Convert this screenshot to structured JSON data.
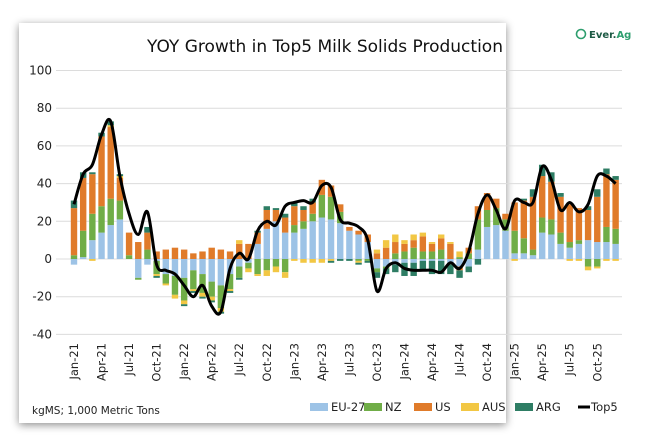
{
  "chart_data": {
    "type": "bar",
    "stacked": true,
    "title": "YOY Growth in Top5 Milk Solids Production",
    "brand": "Ever.Ag",
    "footnote": "kgMS; 1,000 Metric Tons",
    "xlabel": "",
    "ylabel": "",
    "ylim": [
      -40,
      100
    ],
    "yticks": [
      100,
      80,
      60,
      40,
      20,
      0,
      -20,
      -40
    ],
    "grid": true,
    "legend_position": "bottom-right",
    "colors": {
      "EU-27": "#9dc3e6",
      "NZ": "#70ad47",
      "US": "#e07b2a",
      "AUS": "#f2c744",
      "ARG": "#2e7d64",
      "Top5": "#000000"
    },
    "categories": [
      "Jan-21",
      "Feb-21",
      "Mar-21",
      "Apr-21",
      "May-21",
      "Jun-21",
      "Jul-21",
      "Aug-21",
      "Sep-21",
      "Oct-21",
      "Nov-21",
      "Dec-21",
      "Jan-22",
      "Feb-22",
      "Mar-22",
      "Apr-22",
      "May-22",
      "Jun-22",
      "Jul-22",
      "Aug-22",
      "Sep-22",
      "Oct-22",
      "Nov-22",
      "Dec-22",
      "Jan-23",
      "Feb-23",
      "Mar-23",
      "Apr-23",
      "May-23",
      "Jun-23",
      "Jul-23",
      "Aug-23",
      "Sep-23",
      "Oct-23",
      "Nov-23",
      "Dec-23",
      "Jan-24",
      "Feb-24",
      "Mar-24",
      "Apr-24",
      "May-24",
      "Jun-24",
      "Jul-24",
      "Aug-24",
      "Sep-24",
      "Oct-24",
      "Nov-24",
      "Dec-24",
      "Jan-25",
      "Feb-25",
      "Mar-25",
      "Apr-25",
      "May-25",
      "Jun-25",
      "Jul-25",
      "Aug-25",
      "Sep-25",
      "Oct-25",
      "Nov-25",
      "Dec-25"
    ],
    "xtick_labels": [
      "Jan-21",
      "Apr-21",
      "Jul-21",
      "Oct-21",
      "Jan-22",
      "Apr-22",
      "Jul-22",
      "Oct-22",
      "Jan-23",
      "Apr-23",
      "Jul-23",
      "Oct-23",
      "Jan-24",
      "Apr-24",
      "Jul-24",
      "Oct-24",
      "Jan-25",
      "Apr-25",
      "Jul-25",
      "Oct-25"
    ],
    "series": [
      {
        "name": "EU-27",
        "values": [
          -3,
          1,
          10,
          14,
          18,
          21,
          0,
          -10,
          -3,
          -1,
          -8,
          -9,
          -10,
          -6,
          -8,
          -12,
          -14,
          -8,
          -4,
          -2,
          8,
          16,
          20,
          14,
          14,
          16,
          20,
          22,
          21,
          19,
          15,
          13,
          9,
          -5,
          -4,
          -3,
          -2,
          -2,
          -1,
          -1,
          -1,
          -2,
          -4,
          -4,
          5,
          17,
          18,
          15,
          3,
          3,
          2,
          14,
          13,
          8,
          6,
          8,
          10,
          9,
          9,
          8
        ]
      },
      {
        "name": "NZ",
        "values": [
          2,
          14,
          14,
          14,
          14,
          10,
          2,
          -1,
          5,
          -7,
          -5,
          -10,
          -12,
          -10,
          -10,
          -8,
          -12,
          -8,
          -6,
          -3,
          -8,
          -6,
          -4,
          -7,
          4,
          4,
          4,
          12,
          12,
          6,
          0,
          -1,
          -1,
          -2,
          -1,
          3,
          4,
          6,
          4,
          4,
          5,
          -1,
          1,
          3,
          16,
          9,
          9,
          6,
          12,
          8,
          3,
          8,
          8,
          6,
          3,
          2,
          -4,
          -4,
          8,
          8
        ]
      },
      {
        "name": "US",
        "values": [
          25,
          28,
          21,
          37,
          38,
          12,
          12,
          9,
          9,
          4,
          5,
          6,
          5,
          3,
          4,
          6,
          5,
          4,
          8,
          8,
          6,
          10,
          6,
          8,
          10,
          6,
          6,
          8,
          6,
          4,
          2,
          2,
          4,
          3,
          6,
          6,
          4,
          4,
          8,
          4,
          6,
          8,
          -2,
          3,
          7,
          9,
          5,
          3,
          15,
          20,
          28,
          22,
          20,
          19,
          20,
          17,
          16,
          24,
          28,
          26
        ]
      },
      {
        "name": "AUS",
        "values": [
          0,
          0,
          -1,
          0,
          1,
          1,
          0,
          0,
          0,
          -1,
          -1,
          -2,
          -2,
          -1,
          -2,
          -2,
          -2,
          -1,
          2,
          -2,
          -1,
          -3,
          -3,
          -3,
          -1,
          -2,
          -2,
          -2,
          -1,
          0,
          0,
          -1,
          0,
          2,
          4,
          4,
          2,
          3,
          2,
          1,
          2,
          1,
          3,
          0,
          0,
          0,
          0,
          0,
          -1,
          0,
          0,
          0,
          0,
          0,
          -1,
          -1,
          -2,
          -1,
          -1,
          -1
        ]
      },
      {
        "name": "ARG",
        "values": [
          4,
          3,
          1,
          2,
          2,
          1,
          0,
          0,
          3,
          -1,
          0,
          0,
          -1,
          -1,
          -1,
          -1,
          -1,
          -1,
          -1,
          0,
          1,
          2,
          1,
          2,
          2,
          2,
          2,
          0,
          -1,
          -1,
          -1,
          -1,
          -1,
          -3,
          -3,
          -4,
          -7,
          -7,
          -5,
          -7,
          -7,
          -5,
          -4,
          -3,
          -3,
          0,
          0,
          0,
          0,
          1,
          4,
          6,
          5,
          2,
          0,
          0,
          2,
          4,
          3,
          2
        ]
      },
      {
        "name": "Top5",
        "type": "line",
        "values": [
          29,
          45,
          50,
          66,
          73,
          44,
          24,
          13,
          25,
          -3,
          -6,
          -8,
          -14,
          -20,
          -14,
          -25,
          -28,
          -5,
          3,
          0,
          15,
          20,
          18,
          28,
          30,
          31,
          30,
          39,
          38,
          21,
          19,
          17,
          10,
          -17,
          -5,
          -2,
          -5,
          -6,
          -6,
          -6,
          -7,
          -2,
          -5,
          4,
          24,
          34,
          26,
          16,
          31,
          30,
          30,
          49,
          42,
          26,
          30,
          25,
          29,
          44,
          44,
          40
        ]
      }
    ]
  }
}
